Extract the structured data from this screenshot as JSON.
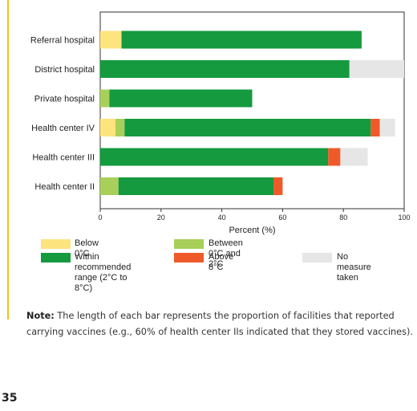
{
  "chart_data": {
    "type": "bar",
    "orientation": "horizontal",
    "stacked": true,
    "categories": [
      "Referral hospital",
      "District hospital",
      "Private hospital",
      "Health center IV",
      "Health center III",
      "Health center II"
    ],
    "series": [
      {
        "name": "Below 0°C",
        "color": "#fde47f",
        "values": [
          7,
          0,
          0,
          5,
          0,
          0
        ]
      },
      {
        "name": "Between 0°C and 2°C",
        "color": "#a8cf5a",
        "values": [
          0,
          0,
          3,
          3,
          0,
          6
        ]
      },
      {
        "name": "Within recommended range (2°C to 8°C)",
        "color": "#159a3f",
        "values": [
          79,
          82,
          47,
          81,
          75,
          51
        ]
      },
      {
        "name": "Above 8°C",
        "color": "#ef5a2a",
        "values": [
          0,
          0,
          0,
          3,
          4,
          3
        ]
      },
      {
        "name": "No measure taken",
        "color": "#e6e6e6",
        "values": [
          0,
          18,
          0,
          5,
          9,
          0
        ]
      }
    ],
    "xlabel": "Percent (%)",
    "xlim": [
      0,
      100
    ],
    "xticks": [
      "0",
      "20",
      "40",
      "60",
      "80",
      "100"
    ],
    "grid": false,
    "legend_position": "bottom"
  },
  "legend": {
    "items": [
      {
        "label_lines": [
          "Below 0°C"
        ]
      },
      {
        "label_lines": [
          "Within recommended",
          "range (2°C to 8°C)"
        ]
      },
      {
        "label_lines": [
          "Between 0°C and 2°C"
        ]
      },
      {
        "label_lines": [
          "Above 8°C"
        ]
      },
      {
        "label_lines": [
          "No measure taken"
        ]
      }
    ]
  },
  "note": {
    "label": "Note:",
    "text": " The length of each bar represents the proportion of facilities that reported carrying vaccines (e.g., 60% of health center IIs indicated that they stored vaccines)."
  },
  "page_number": "35"
}
